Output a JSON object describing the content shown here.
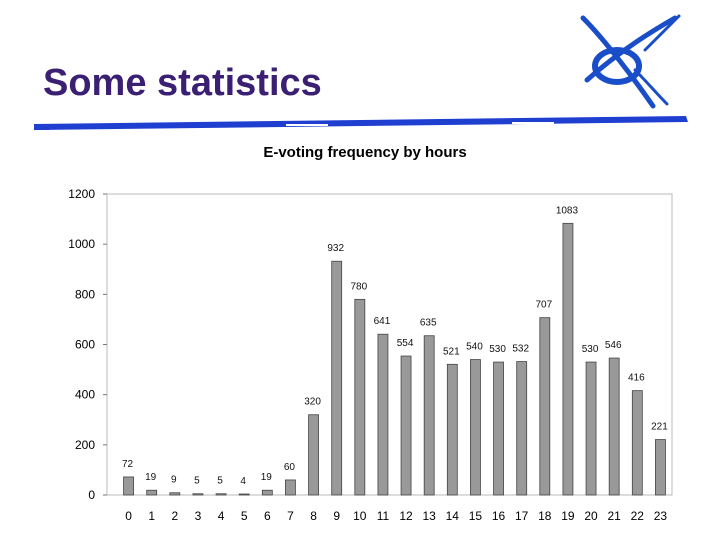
{
  "slide": {
    "title": "Some statistics"
  },
  "colors": {
    "title": "#3a1f72",
    "bar_fill": "#999999",
    "bar_stroke": "#444444",
    "rule": "#1f3fd1",
    "logo_blue": "#1a4ec9"
  },
  "icons": {
    "logo": "x-globe-logo-icon"
  },
  "chart_data": {
    "type": "bar",
    "title": "E-voting frequency by hours",
    "xlabel": "",
    "ylabel": "",
    "ylim": [
      0,
      1200
    ],
    "yticks": [
      0,
      200,
      400,
      600,
      800,
      1000,
      1200
    ],
    "grid": false,
    "legend": "none",
    "categories": [
      "0",
      "1",
      "2",
      "3",
      "4",
      "5",
      "6",
      "7",
      "8",
      "9",
      "10",
      "11",
      "12",
      "13",
      "14",
      "15",
      "16",
      "17",
      "18",
      "19",
      "20",
      "21",
      "22",
      "23"
    ],
    "values": [
      72,
      19,
      9,
      5,
      5,
      4,
      19,
      60,
      320,
      932,
      780,
      641,
      554,
      635,
      521,
      540,
      530,
      532,
      707,
      1083,
      530,
      546,
      416,
      221
    ]
  }
}
